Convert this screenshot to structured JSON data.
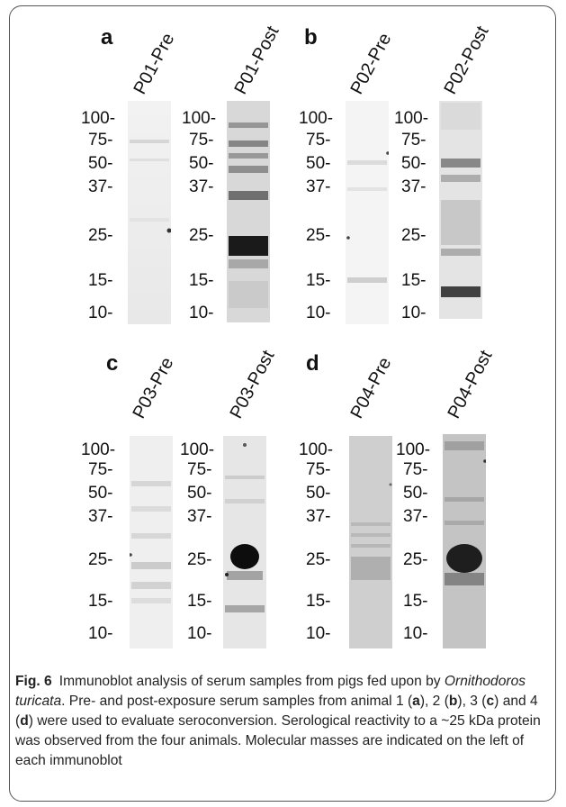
{
  "panels": [
    {
      "letter": "a",
      "lanes": [
        "P01-Pre",
        "P01-Post"
      ]
    },
    {
      "letter": "b",
      "lanes": [
        "P02-Pre",
        "P02-Post"
      ]
    },
    {
      "letter": "c",
      "lanes": [
        "P03-Pre",
        "P03-Post"
      ]
    },
    {
      "letter": "d",
      "lanes": [
        "P04-Pre",
        "P04-Post"
      ]
    }
  ],
  "mw_markers": [
    "100-",
    "75-",
    "50-",
    "37-",
    "25-",
    "15-",
    "10-"
  ],
  "caption": {
    "label": "Fig. 6",
    "t1": "Immunoblot analysis of serum samples from pigs fed upon by ",
    "species": "Ornithodoros turicata",
    "t2": ". Pre- and post-exposure serum samples from animal 1 (",
    "a": "a",
    "t3": "), 2 (",
    "b": "b",
    "t4": "), 3 (",
    "c": "c",
    "t5": ") and 4 (",
    "d": "d",
    "t6": ") were used to evaluate seroconversion. Serological reactivity to a ~25 kDa protein was observed from the four animals. Molecular masses are indicated on the left of each immunoblot"
  }
}
